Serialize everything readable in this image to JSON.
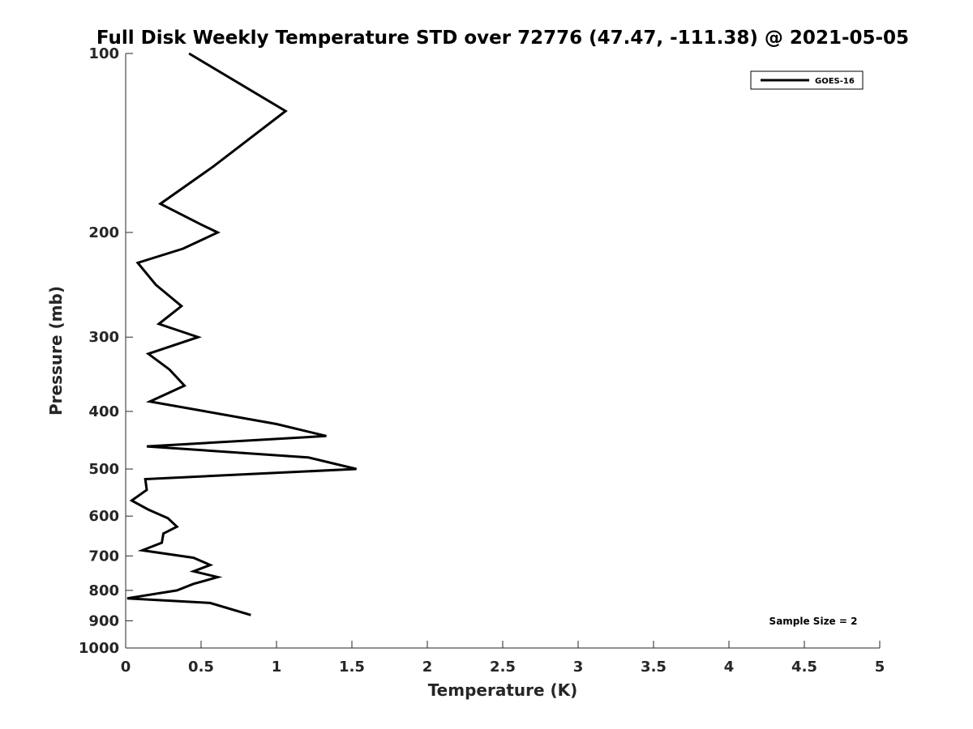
{
  "chart_data": {
    "type": "line",
    "title": "Full Disk Weekly Temperature STD over 72776 (47.47, -111.38) @ 2021-05-05",
    "xlabel": "Temperature (K)",
    "ylabel": "Pressure (mb)",
    "xlim": [
      0,
      5
    ],
    "ylim": [
      100,
      1000
    ],
    "yscale": "log",
    "yreversed": true,
    "grid": false,
    "legend_position": "top-right",
    "xticks": [
      0,
      0.5,
      1,
      1.5,
      2,
      2.5,
      3,
      3.5,
      4,
      4.5,
      5
    ],
    "xtick_labels": [
      "0",
      "0.5",
      "1",
      "1.5",
      "2",
      "2.5",
      "3",
      "3.5",
      "4",
      "4.5",
      "5"
    ],
    "yticks": [
      100,
      200,
      300,
      400,
      500,
      600,
      700,
      800,
      900,
      1000
    ],
    "ytick_labels": [
      "100",
      "200",
      "300",
      "400",
      "500",
      "600",
      "700",
      "800",
      "900",
      "1000"
    ],
    "series": [
      {
        "name": "GOES-16",
        "color": "#000000",
        "points": [
          [
            0.42,
            100
          ],
          [
            1.06,
            125
          ],
          [
            0.58,
            155
          ],
          [
            0.23,
            179
          ],
          [
            0.5,
            194
          ],
          [
            0.61,
            200
          ],
          [
            0.38,
            213
          ],
          [
            0.08,
            225
          ],
          [
            0.2,
            245
          ],
          [
            0.37,
            266
          ],
          [
            0.22,
            285
          ],
          [
            0.48,
            300
          ],
          [
            0.15,
            320
          ],
          [
            0.29,
            340
          ],
          [
            0.39,
            362
          ],
          [
            0.16,
            385
          ],
          [
            0.53,
            400
          ],
          [
            1.0,
            420
          ],
          [
            1.33,
            440
          ],
          [
            0.14,
            458
          ],
          [
            1.21,
            478
          ],
          [
            1.53,
            500
          ],
          [
            0.13,
            520
          ],
          [
            0.14,
            542
          ],
          [
            0.04,
            565
          ],
          [
            0.15,
            585
          ],
          [
            0.28,
            605
          ],
          [
            0.34,
            625
          ],
          [
            0.25,
            642
          ],
          [
            0.24,
            665
          ],
          [
            0.11,
            685
          ],
          [
            0.45,
            705
          ],
          [
            0.56,
            725
          ],
          [
            0.45,
            743
          ],
          [
            0.61,
            760
          ],
          [
            0.45,
            780
          ],
          [
            0.34,
            800
          ],
          [
            0.01,
            825
          ],
          [
            0.56,
            840
          ],
          [
            0.83,
            880
          ]
        ]
      }
    ],
    "annotation": "Sample Size = 2"
  }
}
